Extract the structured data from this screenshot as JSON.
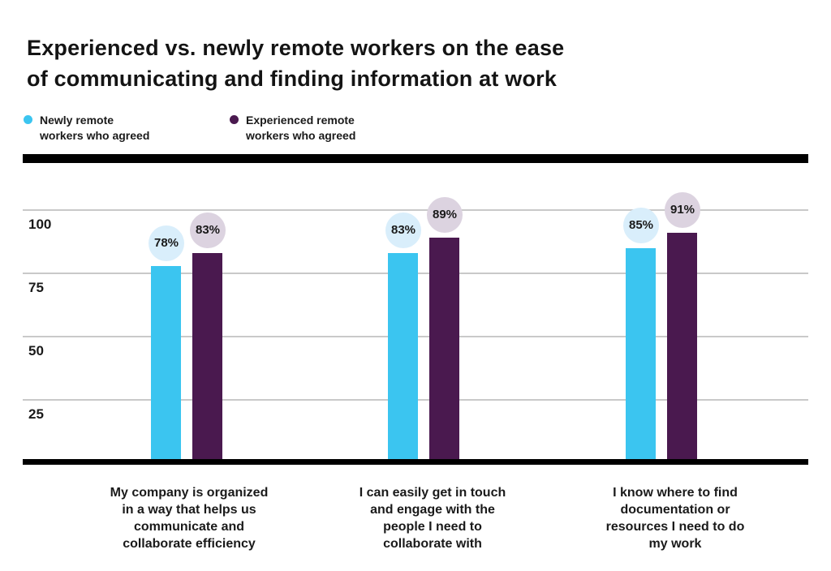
{
  "title": {
    "lines": [
      "Experienced vs. newly remote workers on the ease",
      "of communicating and finding information at work"
    ]
  },
  "legend": {
    "items": [
      {
        "label_lines": [
          "Newly remote",
          "workers who agreed"
        ],
        "color": "#3bc5f0"
      },
      {
        "label_lines": [
          "Experienced remote",
          "workers who agreed"
        ],
        "color": "#4a194f"
      }
    ]
  },
  "chart_data": {
    "type": "bar",
    "title": "Experienced vs. newly remote workers on the ease of communicating and finding information at work",
    "categories": [
      {
        "lines": [
          "My company is organized",
          "in a way that helps us",
          "communicate and",
          "collaborate efficiency"
        ]
      },
      {
        "lines": [
          "I can easily get in touch",
          "and engage with the",
          "people I need to",
          "collaborate with"
        ]
      },
      {
        "lines": [
          "I know where to find",
          "documentation or",
          "resources I need to do",
          "my work"
        ]
      }
    ],
    "series": [
      {
        "name": "Newly remote workers who agreed",
        "color": "#3bc5f0",
        "badge_color": "#d9eefb",
        "values": [
          78,
          83,
          85
        ],
        "labels": [
          "78%",
          "83%",
          "85%"
        ]
      },
      {
        "name": "Experienced remote workers who agreed",
        "color": "#4a194f",
        "badge_color": "#dcd3e0",
        "values": [
          83,
          89,
          91
        ],
        "labels": [
          "83%",
          "89%",
          "91%"
        ]
      }
    ],
    "xlabel": "",
    "ylabel": "",
    "ylim": [
      0,
      100
    ],
    "yticks": [
      100,
      75,
      50,
      25
    ],
    "grid": true,
    "legend_position": "top-left",
    "unit": "%"
  },
  "colors": {
    "background": "#ffffff",
    "text": "#1a1a1a",
    "gridline": "#c9c9c9",
    "axis": "#000000",
    "top_rule": "#000000"
  }
}
